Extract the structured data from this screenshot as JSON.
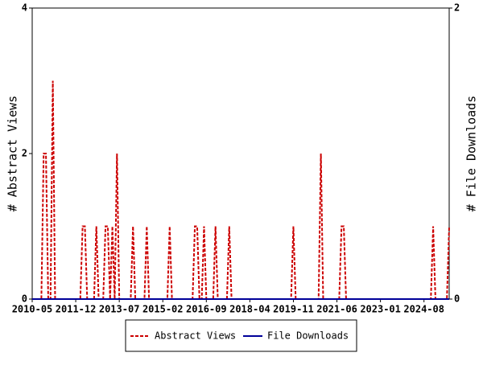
{
  "chart_data": {
    "type": "line",
    "y_label": "# Abstract Views",
    "y2_label": "# File Downloads",
    "categories": [
      "2010-05",
      null,
      null,
      null,
      null,
      null,
      null,
      null,
      null,
      null,
      null,
      null,
      null,
      null,
      null,
      null,
      null,
      null,
      null,
      "2011-12",
      null,
      null,
      null,
      null,
      null,
      null,
      null,
      null,
      null,
      null,
      null,
      null,
      null,
      null,
      null,
      null,
      null,
      null,
      "2013-07",
      null,
      null,
      null,
      null,
      null,
      null,
      null,
      null,
      null,
      null,
      null,
      null,
      null,
      null,
      null,
      null,
      null,
      null,
      "2015-02",
      null,
      null,
      null,
      null,
      null,
      null,
      null,
      null,
      null,
      null,
      null,
      null,
      null,
      null,
      null,
      null,
      null,
      null,
      "2016-09",
      null,
      null,
      null,
      null,
      null,
      null,
      null,
      null,
      null,
      null,
      null,
      null,
      null,
      null,
      null,
      null,
      null,
      null,
      "2018-04",
      null,
      null,
      null,
      null,
      null,
      null,
      null,
      null,
      null,
      null,
      null,
      null,
      null,
      null,
      null,
      null,
      null,
      null,
      "2019-11",
      null,
      null,
      null,
      null,
      null,
      null,
      null,
      null,
      null,
      null,
      null,
      null,
      null,
      null,
      null,
      null,
      null,
      null,
      "2021-06",
      null,
      null,
      null,
      null,
      null,
      null,
      null,
      null,
      null,
      null,
      null,
      null,
      null,
      null,
      null,
      null,
      null,
      null,
      "2023-01",
      null,
      null,
      null,
      null,
      null,
      null,
      null,
      null,
      null,
      null,
      null,
      null,
      null,
      null,
      null,
      null,
      null,
      null,
      "2024-08",
      null,
      null,
      null,
      null,
      null,
      null,
      null,
      null,
      null,
      null,
      null
    ],
    "series": [
      {
        "name": "Abstract Views",
        "color": "#cc0000",
        "dashed": true,
        "values": [
          0,
          0,
          0,
          0,
          0,
          2,
          2,
          0,
          0,
          3,
          0,
          0,
          0,
          0,
          0,
          0,
          0,
          0,
          0,
          0,
          0,
          0,
          1,
          1,
          0,
          0,
          0,
          0,
          1,
          0,
          0,
          0,
          1,
          1,
          0,
          1,
          0,
          2,
          0,
          0,
          0,
          0,
          0,
          0,
          1,
          0,
          0,
          0,
          0,
          0,
          1,
          0,
          0,
          0,
          0,
          0,
          0,
          0,
          0,
          0,
          1,
          0,
          0,
          0,
          0,
          0,
          0,
          0,
          0,
          0,
          0,
          1,
          1,
          0,
          0,
          1,
          0,
          0,
          0,
          0,
          1,
          0,
          0,
          0,
          0,
          0,
          1,
          0,
          0,
          0,
          0,
          0,
          0,
          0,
          0,
          0,
          0,
          0,
          0,
          0,
          0,
          0,
          0,
          0,
          0,
          0,
          0,
          0,
          0,
          0,
          0,
          0,
          0,
          0,
          1,
          0,
          0,
          0,
          0,
          0,
          0,
          0,
          0,
          0,
          0,
          0,
          2,
          0,
          0,
          0,
          0,
          0,
          0,
          0,
          0,
          1,
          1,
          0,
          0,
          0,
          0,
          0,
          0,
          0,
          0,
          0,
          0,
          0,
          0,
          0,
          0,
          0,
          0,
          0,
          0,
          0,
          0,
          0,
          0,
          0,
          0,
          0,
          0,
          0,
          0,
          0,
          0,
          0,
          0,
          0,
          0,
          0,
          0,
          0,
          0,
          1,
          0,
          0,
          0,
          0,
          0,
          0,
          1
        ]
      },
      {
        "name": "File Downloads",
        "color": "#000099",
        "dashed": false,
        "axis": "y2",
        "values": [
          0,
          0,
          0,
          0,
          0,
          0,
          0,
          0,
          0,
          0,
          0,
          0,
          0,
          0,
          0,
          0,
          0,
          0,
          0,
          0,
          0,
          0,
          0,
          0,
          0,
          0,
          0,
          0,
          0,
          0,
          0,
          0,
          0,
          0,
          0,
          0,
          0,
          0,
          0,
          0,
          0,
          0,
          0,
          0,
          0,
          0,
          0,
          0,
          0,
          0,
          0,
          0,
          0,
          0,
          0,
          0,
          0,
          0,
          0,
          0,
          0,
          0,
          0,
          0,
          0,
          0,
          0,
          0,
          0,
          0,
          0,
          0,
          0,
          0,
          0,
          0,
          0,
          0,
          0,
          0,
          0,
          0,
          0,
          0,
          0,
          0,
          0,
          0,
          0,
          0,
          0,
          0,
          0,
          0,
          0,
          0,
          0,
          0,
          0,
          0,
          0,
          0,
          0,
          0,
          0,
          0,
          0,
          0,
          0,
          0,
          0,
          0,
          0,
          0,
          0,
          0,
          0,
          0,
          0,
          0,
          0,
          0,
          0,
          0,
          0,
          0,
          0,
          0,
          0,
          0,
          0,
          0,
          0,
          0,
          0,
          0,
          0,
          0,
          0,
          0,
          0,
          0,
          0,
          0,
          0,
          0,
          0,
          0,
          0,
          0,
          0,
          0,
          0,
          0,
          0,
          0,
          0,
          0,
          0,
          0,
          0,
          0,
          0,
          0,
          0,
          0,
          0,
          0,
          0,
          0,
          0,
          0,
          0,
          0,
          0,
          0,
          0,
          0,
          0,
          0,
          0,
          0,
          0
        ]
      }
    ],
    "ylim": [
      0,
      4
    ],
    "yticks": [
      0,
      2,
      4
    ],
    "y2lim": [
      0,
      2
    ],
    "y2ticks": [
      0,
      2
    ],
    "legend": "bottom"
  }
}
